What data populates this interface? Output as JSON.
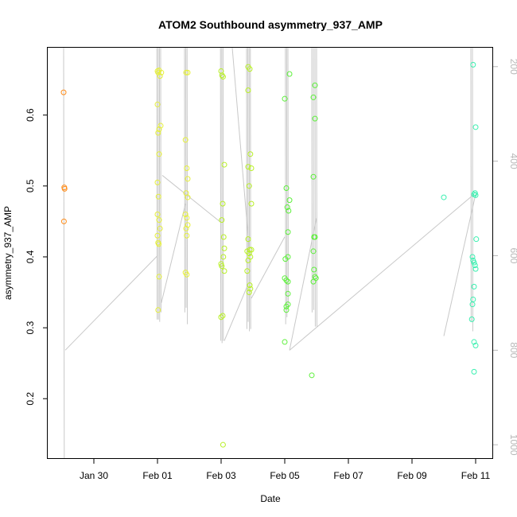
{
  "chart_data": {
    "type": "scatter",
    "title": "ATOM2 Southbound asymmetry_937_AMP",
    "xlabel": "Date",
    "ylabel": "asymmetry_937_AMP",
    "x_ticks": [
      "Jan 30",
      "Feb 01",
      "Feb 03",
      "Feb 05",
      "Feb 07",
      "Feb 09",
      "Feb 11"
    ],
    "x_tick_days": [
      0,
      2,
      4,
      6,
      8,
      10,
      12
    ],
    "x_range_days": [
      -1.45,
      12.55
    ],
    "ylim": [
      0.115,
      0.695
    ],
    "y_ticks": [
      0.2,
      0.3,
      0.4,
      0.5,
      0.6
    ],
    "y2_ticks": [
      200,
      400,
      600,
      800,
      1000
    ],
    "y2lim": [
      1030,
      160
    ],
    "grid": false,
    "legend": "none",
    "series": [
      {
        "color": "#ff8c1a",
        "points": [
          [
            -0.95,
            0.632
          ],
          [
            -0.93,
            0.498
          ],
          [
            -0.92,
            0.496
          ],
          [
            -0.94,
            0.45
          ]
        ]
      },
      {
        "color": "#e6f03a",
        "points": [
          [
            2.0,
            0.662
          ],
          [
            2.02,
            0.66
          ],
          [
            2.05,
            0.663
          ],
          [
            2.08,
            0.655
          ],
          [
            2.12,
            0.66
          ],
          [
            2.0,
            0.615
          ],
          [
            2.05,
            0.58
          ],
          [
            2.1,
            0.585
          ],
          [
            2.02,
            0.575
          ],
          [
            2.05,
            0.545
          ],
          [
            2.0,
            0.505
          ],
          [
            2.03,
            0.485
          ],
          [
            2.0,
            0.46
          ],
          [
            2.05,
            0.452
          ],
          [
            2.08,
            0.44
          ],
          [
            2.0,
            0.43
          ],
          [
            2.02,
            0.42
          ],
          [
            2.04,
            0.418
          ],
          [
            2.05,
            0.372
          ],
          [
            2.02,
            0.325
          ],
          [
            2.9,
            0.66
          ],
          [
            2.95,
            0.66
          ],
          [
            2.88,
            0.565
          ],
          [
            2.92,
            0.525
          ],
          [
            2.95,
            0.51
          ],
          [
            2.9,
            0.49
          ],
          [
            2.95,
            0.484
          ],
          [
            2.88,
            0.46
          ],
          [
            2.92,
            0.455
          ],
          [
            2.95,
            0.445
          ],
          [
            2.9,
            0.44
          ],
          [
            2.92,
            0.43
          ],
          [
            2.88,
            0.378
          ],
          [
            2.92,
            0.375
          ]
        ]
      },
      {
        "color": "#b8f026",
        "points": [
          [
            4.0,
            0.662
          ],
          [
            4.03,
            0.656
          ],
          [
            4.06,
            0.654
          ],
          [
            4.1,
            0.53
          ],
          [
            4.05,
            0.475
          ],
          [
            4.02,
            0.452
          ],
          [
            4.08,
            0.428
          ],
          [
            4.1,
            0.412
          ],
          [
            4.07,
            0.4
          ],
          [
            4.0,
            0.39
          ],
          [
            4.02,
            0.387
          ],
          [
            4.1,
            0.38
          ],
          [
            4.0,
            0.315
          ],
          [
            4.05,
            0.317
          ],
          [
            4.06,
            0.135
          ],
          [
            4.85,
            0.668
          ],
          [
            4.9,
            0.665
          ],
          [
            4.85,
            0.635
          ],
          [
            4.92,
            0.545
          ],
          [
            4.85,
            0.527
          ],
          [
            4.95,
            0.525
          ],
          [
            4.88,
            0.5
          ],
          [
            4.95,
            0.475
          ],
          [
            4.85,
            0.425
          ],
          [
            4.9,
            0.41
          ],
          [
            4.82,
            0.408
          ],
          [
            4.88,
            0.405
          ],
          [
            4.95,
            0.41
          ],
          [
            4.85,
            0.395
          ],
          [
            4.92,
            0.4
          ],
          [
            4.82,
            0.38
          ],
          [
            4.9,
            0.36
          ],
          [
            4.92,
            0.355
          ],
          [
            4.88,
            0.35
          ]
        ]
      },
      {
        "color": "#5cf03a",
        "points": [
          [
            6.15,
            0.658
          ],
          [
            6.0,
            0.623
          ],
          [
            6.05,
            0.497
          ],
          [
            6.15,
            0.48
          ],
          [
            6.08,
            0.47
          ],
          [
            6.12,
            0.465
          ],
          [
            6.1,
            0.435
          ],
          [
            6.1,
            0.4
          ],
          [
            6.02,
            0.397
          ],
          [
            6.0,
            0.37
          ],
          [
            6.05,
            0.367
          ],
          [
            6.1,
            0.365
          ],
          [
            6.1,
            0.348
          ],
          [
            6.1,
            0.333
          ],
          [
            6.05,
            0.33
          ],
          [
            6.05,
            0.325
          ],
          [
            6.0,
            0.28
          ],
          [
            6.95,
            0.642
          ],
          [
            6.9,
            0.625
          ],
          [
            6.95,
            0.595
          ],
          [
            6.9,
            0.513
          ],
          [
            6.92,
            0.428
          ],
          [
            6.95,
            0.428
          ],
          [
            6.9,
            0.408
          ],
          [
            6.92,
            0.382
          ],
          [
            6.95,
            0.372
          ],
          [
            6.98,
            0.37
          ],
          [
            6.9,
            0.365
          ],
          [
            6.85,
            0.233
          ]
        ]
      },
      {
        "color": "#3af0b0",
        "points": [
          [
            11.0,
            0.484
          ],
          [
            11.92,
            0.671
          ],
          [
            12.0,
            0.583
          ],
          [
            11.98,
            0.49
          ],
          [
            12.0,
            0.487
          ],
          [
            11.95,
            0.488
          ],
          [
            11.9,
            0.4
          ],
          [
            11.92,
            0.395
          ],
          [
            11.95,
            0.392
          ],
          [
            11.98,
            0.388
          ],
          [
            12.0,
            0.383
          ],
          [
            12.02,
            0.425
          ],
          [
            11.95,
            0.358
          ],
          [
            11.92,
            0.34
          ],
          [
            11.9,
            0.333
          ],
          [
            11.88,
            0.312
          ],
          [
            11.95,
            0.28
          ],
          [
            12.0,
            0.275
          ],
          [
            11.95,
            0.238
          ]
        ]
      }
    ],
    "depth_traces": [
      [
        [
          -0.95,
          160
        ],
        [
          -0.93,
          1030
        ]
      ],
      [
        [
          -0.9,
          800
        ],
        [
          2.0,
          600
        ]
      ],
      [
        [
          1.98,
          160
        ],
        [
          1.99,
          735
        ]
      ],
      [
        [
          2.02,
          160
        ],
        [
          2.03,
          735
        ]
      ],
      [
        [
          2.06,
          160
        ],
        [
          2.07,
          740
        ]
      ],
      [
        [
          2.1,
          160
        ],
        [
          2.11,
          720
        ]
      ],
      [
        [
          2.12,
          700
        ],
        [
          2.88,
          490
        ]
      ],
      [
        [
          2.85,
          160
        ],
        [
          2.86,
          720
        ]
      ],
      [
        [
          2.89,
          160
        ],
        [
          2.9,
          710
        ]
      ],
      [
        [
          2.93,
          160
        ],
        [
          2.94,
          745
        ]
      ],
      [
        [
          2.15,
          430
        ],
        [
          4.0,
          530
        ]
      ],
      [
        [
          3.98,
          160
        ],
        [
          3.99,
          780
        ]
      ],
      [
        [
          4.02,
          160
        ],
        [
          4.03,
          785
        ]
      ],
      [
        [
          4.06,
          160
        ],
        [
          4.07,
          780
        ]
      ],
      [
        [
          4.1,
          780
        ],
        [
          4.82,
          665
        ]
      ],
      [
        [
          4.35,
          160
        ],
        [
          4.9,
          600
        ]
      ],
      [
        [
          4.8,
          160
        ],
        [
          4.81,
          755
        ]
      ],
      [
        [
          4.84,
          160
        ],
        [
          4.85,
          740
        ]
      ],
      [
        [
          4.88,
          160
        ],
        [
          4.89,
          760
        ]
      ],
      [
        [
          4.92,
          160
        ],
        [
          4.93,
          755
        ]
      ],
      [
        [
          4.95,
          690
        ],
        [
          6.0,
          560
        ]
      ],
      [
        [
          6.02,
          160
        ],
        [
          6.03,
          745
        ]
      ],
      [
        [
          6.06,
          160
        ],
        [
          6.07,
          730
        ]
      ],
      [
        [
          6.1,
          160
        ],
        [
          6.11,
          710
        ]
      ],
      [
        [
          6.15,
          800
        ],
        [
          7.0,
          520
        ]
      ],
      [
        [
          6.85,
          160
        ],
        [
          6.86,
          720
        ]
      ],
      [
        [
          6.9,
          160
        ],
        [
          6.91,
          715
        ]
      ],
      [
        [
          6.95,
          160
        ],
        [
          6.96,
          750
        ]
      ],
      [
        [
          7.0,
          160
        ],
        [
          7.01,
          750
        ]
      ],
      [
        [
          6.15,
          800
        ],
        [
          11.95,
          470
        ]
      ],
      [
        [
          11.0,
          770
        ],
        [
          12.0,
          470
        ]
      ],
      [
        [
          11.85,
          160
        ],
        [
          11.86,
          740
        ]
      ],
      [
        [
          11.9,
          160
        ],
        [
          11.91,
          760
        ]
      ]
    ]
  }
}
